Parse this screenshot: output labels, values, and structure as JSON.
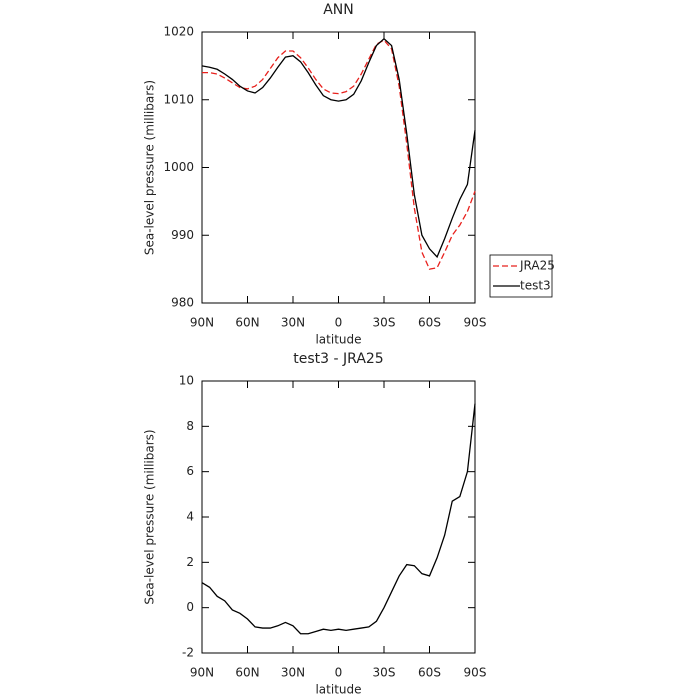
{
  "chart_data": [
    {
      "type": "line",
      "title": "ANN",
      "xlabel": "latitude",
      "ylabel": "Sea-level pressure (millibars)",
      "x": [
        90,
        85,
        80,
        75,
        70,
        65,
        60,
        55,
        50,
        45,
        40,
        35,
        30,
        25,
        20,
        15,
        10,
        5,
        0,
        -5,
        -10,
        -15,
        -20,
        -25,
        -30,
        -35,
        -40,
        -45,
        -50,
        -55,
        -60,
        -65,
        -70,
        -75,
        -80,
        -85,
        -90
      ],
      "xlim": [
        90,
        -90
      ],
      "xticks": [
        {
          "value": 90,
          "label": "90N"
        },
        {
          "value": 60,
          "label": "60N"
        },
        {
          "value": 30,
          "label": "30N"
        },
        0,
        {
          "value": -30,
          "label": "30S"
        },
        {
          "value": -60,
          "label": "60S"
        },
        {
          "value": -90,
          "label": "90S"
        }
      ],
      "ylim": [
        980,
        1020
      ],
      "yticks": [
        980,
        990,
        1000,
        1010,
        1020
      ],
      "legend": "right",
      "series": [
        {
          "name": "JRA25",
          "color": "#e8201c",
          "dash": true,
          "values": [
            1014,
            1014,
            1013.8,
            1013.2,
            1012.5,
            1011.8,
            1011.6,
            1012,
            1013,
            1014.6,
            1016.2,
            1017.2,
            1017.2,
            1016.2,
            1014.7,
            1013,
            1011.6,
            1011,
            1010.9,
            1011.2,
            1012,
            1013.8,
            1016,
            1018.2,
            1018.8,
            1017.5,
            1012,
            1003.5,
            994,
            987.5,
            985,
            985.2,
            987.5,
            990,
            991.5,
            993.5,
            996.5
          ]
        },
        {
          "name": "test3",
          "color": "#000000",
          "dash": false,
          "values": [
            1015,
            1014.8,
            1014.5,
            1013.8,
            1013,
            1012,
            1011.3,
            1011,
            1011.8,
            1013.2,
            1014.8,
            1016.3,
            1016.5,
            1015.6,
            1014,
            1012.2,
            1010.6,
            1010,
            1009.8,
            1010,
            1010.8,
            1012.8,
            1015.5,
            1018,
            1019,
            1018,
            1013,
            1005,
            996,
            990,
            988,
            986.8,
            989.5,
            992.5,
            995.3,
            997.5,
            1005.5
          ]
        }
      ]
    },
    {
      "type": "line",
      "title": "test3 - JRA25",
      "xlabel": "latitude",
      "ylabel": "Sea-level pressure (millibars)",
      "x": [
        90,
        85,
        80,
        75,
        70,
        65,
        60,
        55,
        50,
        45,
        40,
        35,
        30,
        25,
        20,
        15,
        10,
        5,
        0,
        -5,
        -10,
        -15,
        -20,
        -25,
        -30,
        -35,
        -40,
        -45,
        -50,
        -55,
        -60,
        -65,
        -70,
        -75,
        -80,
        -85,
        -90
      ],
      "xlim": [
        90,
        -90
      ],
      "xticks": [
        {
          "value": 90,
          "label": "90N"
        },
        {
          "value": 60,
          "label": "60N"
        },
        {
          "value": 30,
          "label": "30N"
        },
        0,
        {
          "value": -30,
          "label": "30S"
        },
        {
          "value": -60,
          "label": "60S"
        },
        {
          "value": -90,
          "label": "90S"
        }
      ],
      "ylim": [
        -2,
        10
      ],
      "yticks": [
        -2,
        0,
        2,
        4,
        6,
        8,
        10
      ],
      "series": [
        {
          "color": "#000000",
          "dash": false,
          "values": [
            1.1,
            0.9,
            0.5,
            0.3,
            -0.1,
            -0.25,
            -0.5,
            -0.85,
            -0.9,
            -0.9,
            -0.8,
            -0.65,
            -0.8,
            -1.15,
            -1.15,
            -1.05,
            -0.95,
            -1.0,
            -0.95,
            -1.0,
            -0.95,
            -0.9,
            -0.85,
            -0.6,
            0.0,
            0.7,
            1.4,
            1.9,
            1.85,
            1.5,
            1.4,
            2.2,
            3.2,
            4.7,
            4.9,
            6.0,
            9.0
          ]
        }
      ]
    }
  ]
}
